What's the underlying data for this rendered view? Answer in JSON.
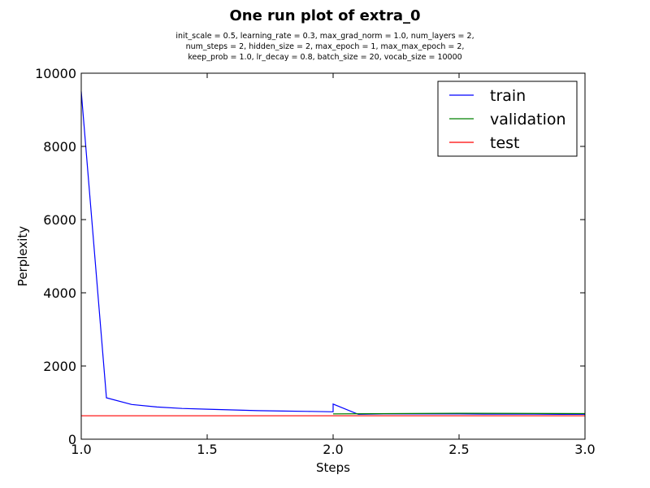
{
  "chart_data": {
    "type": "line",
    "title": "One run plot of extra_0",
    "subtitle_lines": [
      "init_scale = 0.5, learning_rate = 0.3, max_grad_norm = 1.0, num_layers = 2,",
      "num_steps = 2, hidden_size = 2, max_epoch = 1, max_max_epoch = 2,",
      "keep_prob = 1.0, lr_decay = 0.8, batch_size = 20, vocab_size = 10000"
    ],
    "xlabel": "Steps",
    "ylabel": "Perplexity",
    "xlim": [
      1.0,
      3.0
    ],
    "ylim": [
      0,
      10000
    ],
    "x_ticks": [
      1.0,
      1.5,
      2.0,
      2.5,
      3.0
    ],
    "x_tick_labels": [
      "1.0",
      "1.5",
      "2.0",
      "2.5",
      "3.0"
    ],
    "y_ticks": [
      0,
      2000,
      4000,
      6000,
      8000,
      10000
    ],
    "y_tick_labels": [
      "0",
      "2000",
      "4000",
      "6000",
      "8000",
      "10000"
    ],
    "grid": false,
    "legend_position": "top-right",
    "series": [
      {
        "name": "train",
        "color": "#0000ff",
        "x": [
          1.0,
          1.1,
          1.2,
          1.3,
          1.4,
          1.5,
          1.6,
          1.7,
          1.8,
          1.9,
          2.0,
          2.0,
          2.1,
          2.2,
          2.3,
          2.4,
          2.5,
          2.6,
          2.7,
          2.8,
          2.9,
          3.0
        ],
        "y": [
          9500,
          1130,
          950,
          880,
          840,
          820,
          800,
          780,
          770,
          760,
          750,
          960,
          680,
          690,
          690,
          690,
          690,
          685,
          685,
          685,
          680,
          680
        ]
      },
      {
        "name": "validation",
        "color": "#008000",
        "x": [
          2.0,
          2.5,
          3.0
        ],
        "y": [
          690,
          710,
          700
        ]
      },
      {
        "name": "test",
        "color": "#ff0000",
        "x": [
          1.0,
          3.0
        ],
        "y": [
          640,
          640
        ]
      }
    ]
  }
}
